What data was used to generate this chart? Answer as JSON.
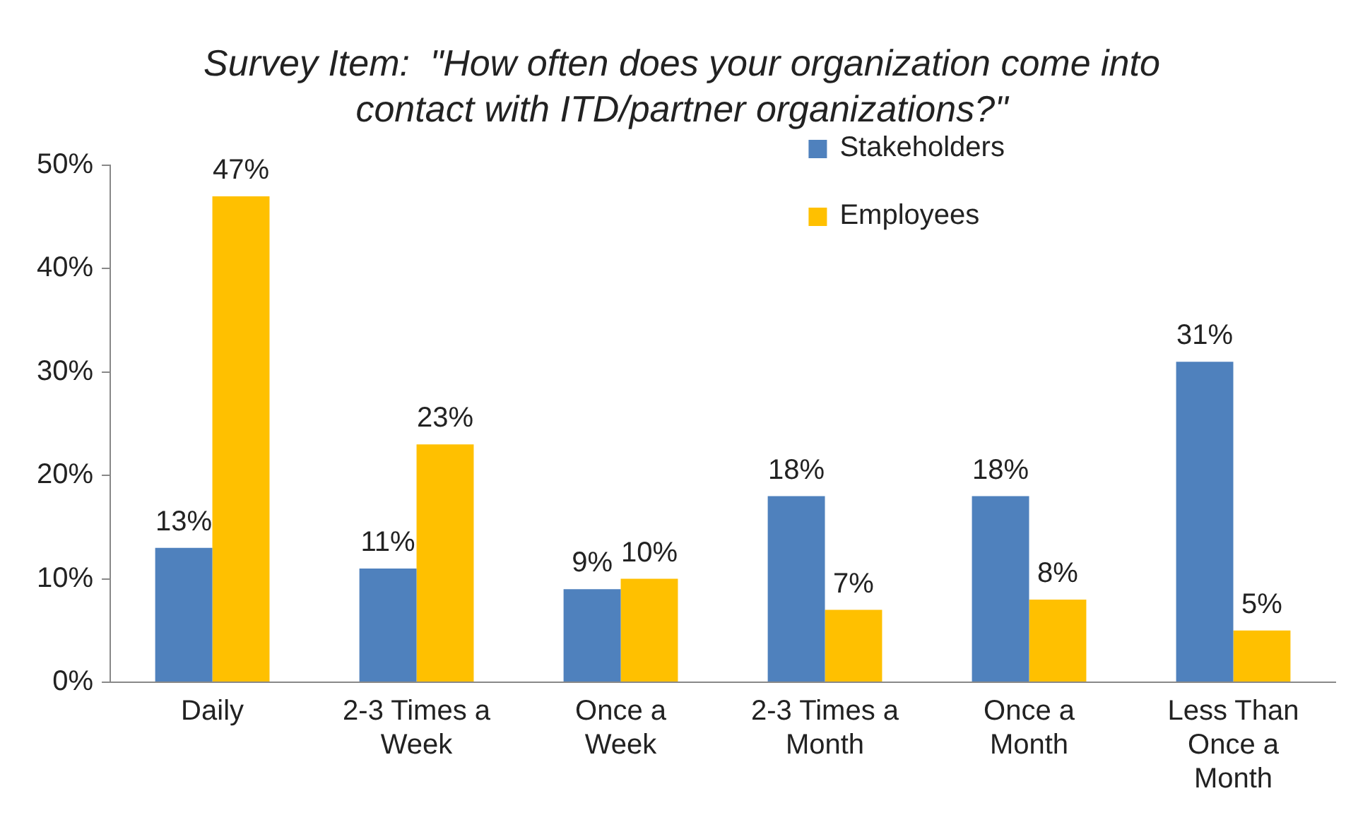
{
  "chart_data": {
    "type": "bar",
    "title": "Survey Item:  \"How often does your organization come into contact with ITD/partner organizations?\"",
    "categories": [
      "Daily",
      "2-3 Times a Week",
      "Once a Week",
      "2-3 Times a Month",
      "Once a Month",
      "Less Than Once a Month"
    ],
    "series": [
      {
        "name": "Stakeholders",
        "color": "#4f81bd",
        "values": [
          13,
          11,
          9,
          18,
          18,
          31
        ],
        "value_labels": [
          "13%",
          "11%",
          "9%",
          "18%",
          "18%",
          "31%"
        ]
      },
      {
        "name": "Employees",
        "color": "#ffc000",
        "values": [
          47,
          23,
          10,
          7,
          8,
          5
        ],
        "value_labels": [
          "47%",
          "23%",
          "10%",
          "7%",
          "8%",
          "5%"
        ]
      }
    ],
    "ylim": [
      0,
      50
    ],
    "yticks": [
      {
        "value": 0,
        "label": "0%"
      },
      {
        "value": 10,
        "label": "10%"
      },
      {
        "value": 20,
        "label": "20%"
      },
      {
        "value": 30,
        "label": "30%"
      },
      {
        "value": 40,
        "label": "40%"
      },
      {
        "value": 50,
        "label": "50%"
      }
    ],
    "grid": false,
    "legend": "top right"
  }
}
